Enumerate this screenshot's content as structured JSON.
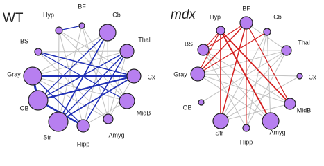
{
  "panels": [
    {
      "title": "WT",
      "nodes": [
        "BF",
        "Cb",
        "Thal",
        "Cx",
        "MidB",
        "Amyg",
        "Hipp",
        "Str",
        "OB",
        "Gray",
        "BS",
        "Hyp"
      ]
    },
    {
      "title": "mdx",
      "nodes": [
        "BF",
        "Cb",
        "Thal",
        "Cx",
        "MidB",
        "Amyg",
        "Hipp",
        "Str",
        "OB",
        "Gray",
        "BS",
        "Hyp"
      ]
    }
  ]
}
